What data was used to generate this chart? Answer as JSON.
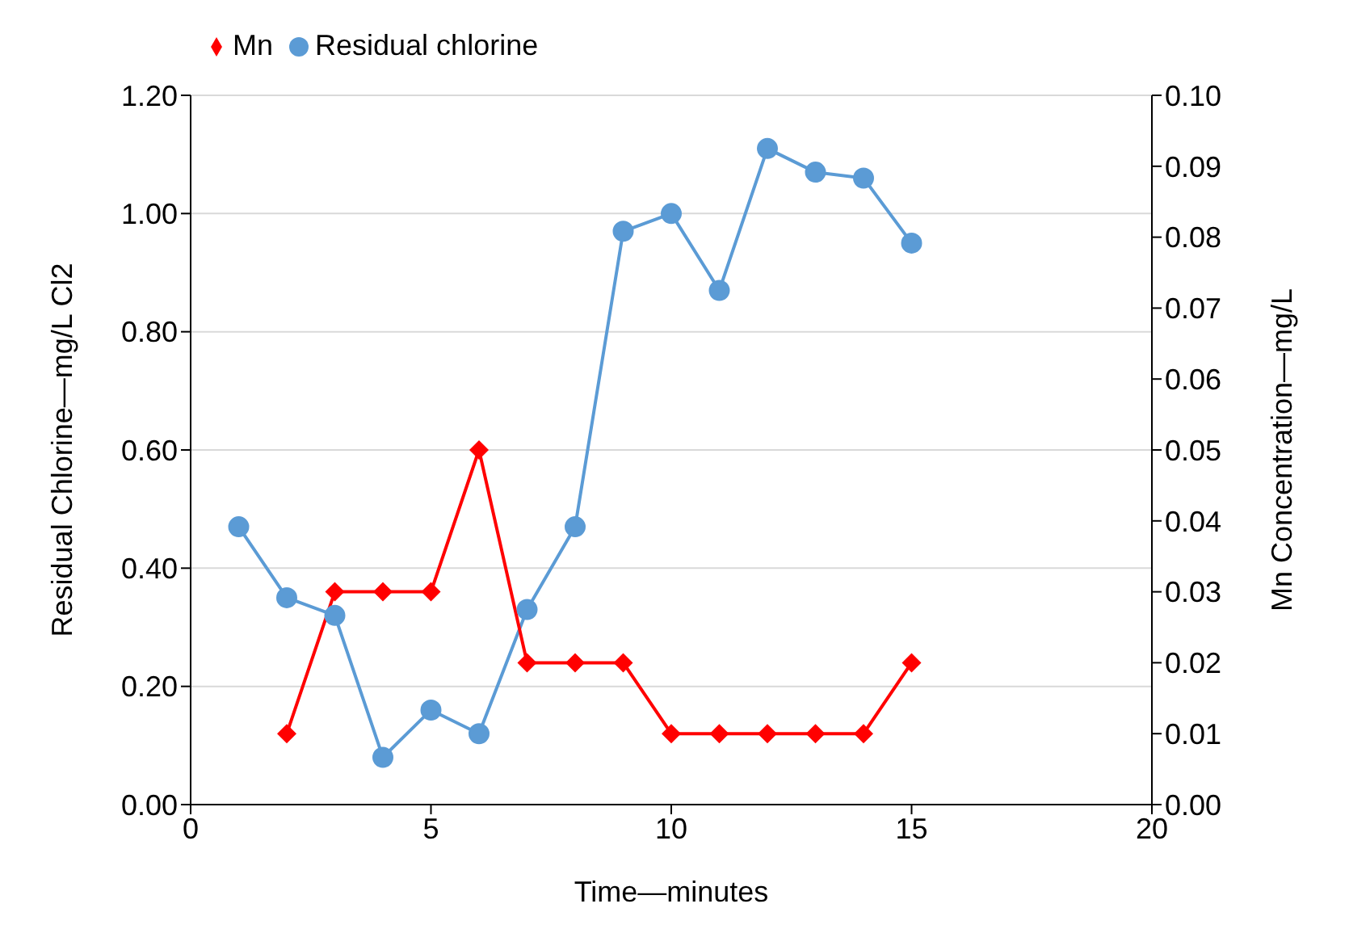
{
  "chart_data": {
    "type": "line",
    "xlabel": "Time—minutes",
    "ylabel": "Residual Chlorine—mg/L Cl2",
    "y2label": "Mn Concentration—mg/L",
    "series": [
      {
        "name": "Residual chlorine",
        "color": "#5b9bd5",
        "marker": "circle",
        "x": [
          1,
          2,
          3,
          4,
          5,
          6,
          7,
          8,
          9,
          10,
          11,
          12,
          13,
          14,
          15
        ],
        "values": [
          0.47,
          0.35,
          0.32,
          0.08,
          0.16,
          0.12,
          0.33,
          0.47,
          0.97,
          1.0,
          0.87,
          1.11,
          1.07,
          1.06,
          0.95
        ]
      },
      {
        "name": "Mn",
        "color": "#ff0000",
        "marker": "diamond",
        "axis": "y2",
        "x": [
          2,
          3,
          4,
          5,
          6,
          7,
          8,
          9,
          10,
          11,
          12,
          13,
          14,
          15
        ],
        "values": [
          0.01,
          0.03,
          0.03,
          0.03,
          0.05,
          0.02,
          0.02,
          0.02,
          0.01,
          0.01,
          0.01,
          0.01,
          0.01,
          0.02
        ]
      }
    ],
    "xlim": [
      0,
      20
    ],
    "xticks": [
      0,
      5,
      10,
      15,
      20
    ],
    "ylim": [
      0,
      1.2
    ],
    "yticks": [
      {
        "value": 0,
        "label": "0.00"
      },
      {
        "value": 0.2,
        "label": "0.20"
      },
      {
        "value": 0.4,
        "label": "0.40"
      },
      {
        "value": 0.6,
        "label": "0.60"
      },
      {
        "value": 0.8,
        "label": "0.80"
      },
      {
        "value": 1,
        "label": "1.00"
      },
      {
        "value": 1.2,
        "label": "1.20"
      }
    ],
    "y2lim": [
      0,
      0.1
    ],
    "y2ticks": [
      {
        "value": 0,
        "label": "0.00"
      },
      {
        "value": 0.01,
        "label": "0.01"
      },
      {
        "value": 0.02,
        "label": "0.02"
      },
      {
        "value": 0.03,
        "label": "0.03"
      },
      {
        "value": 0.04,
        "label": "0.04"
      },
      {
        "value": 0.05,
        "label": "0.05"
      },
      {
        "value": 0.06,
        "label": "0.06"
      },
      {
        "value": 0.07,
        "label": "0.07"
      },
      {
        "value": 0.08,
        "label": "0.08"
      },
      {
        "value": 0.09,
        "label": "0.09"
      },
      {
        "value": 0.1,
        "label": "0.10"
      }
    ],
    "grid": "y",
    "legend": "top left"
  }
}
